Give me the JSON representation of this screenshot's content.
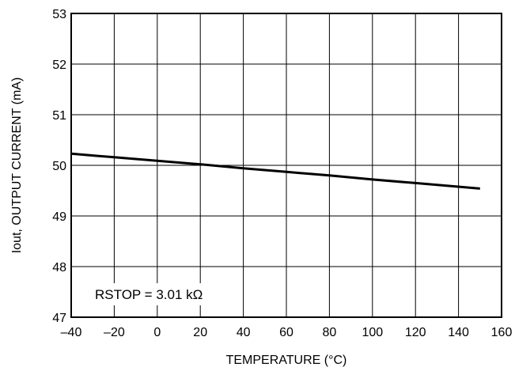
{
  "chart_data": {
    "type": "line",
    "title": "",
    "xlabel": "TEMPERATURE (°C)",
    "ylabel": "Iout, OUTPUT CURRENT (mA)",
    "xlim": [
      -40,
      160
    ],
    "ylim": [
      47,
      53
    ],
    "xticks": [
      -40,
      -20,
      0,
      20,
      40,
      60,
      80,
      100,
      120,
      140,
      160
    ],
    "yticks": [
      47,
      48,
      49,
      50,
      51,
      52,
      53
    ],
    "xtick_labels": [
      "–40",
      "–20",
      "0",
      "20",
      "40",
      "60",
      "80",
      "100",
      "120",
      "140",
      "160"
    ],
    "ytick_labels": [
      "47",
      "48",
      "49",
      "50",
      "51",
      "52",
      "53"
    ],
    "grid": true,
    "series": [
      {
        "x": [
          -40,
          -20,
          0,
          20,
          40,
          60,
          80,
          100,
          120,
          150
        ],
        "y": [
          50.23,
          50.16,
          50.09,
          50.02,
          49.94,
          49.87,
          49.8,
          49.72,
          49.65,
          49.54
        ],
        "color": "#000000"
      }
    ],
    "annotation": "RSTOP = 3.01 kΩ"
  }
}
